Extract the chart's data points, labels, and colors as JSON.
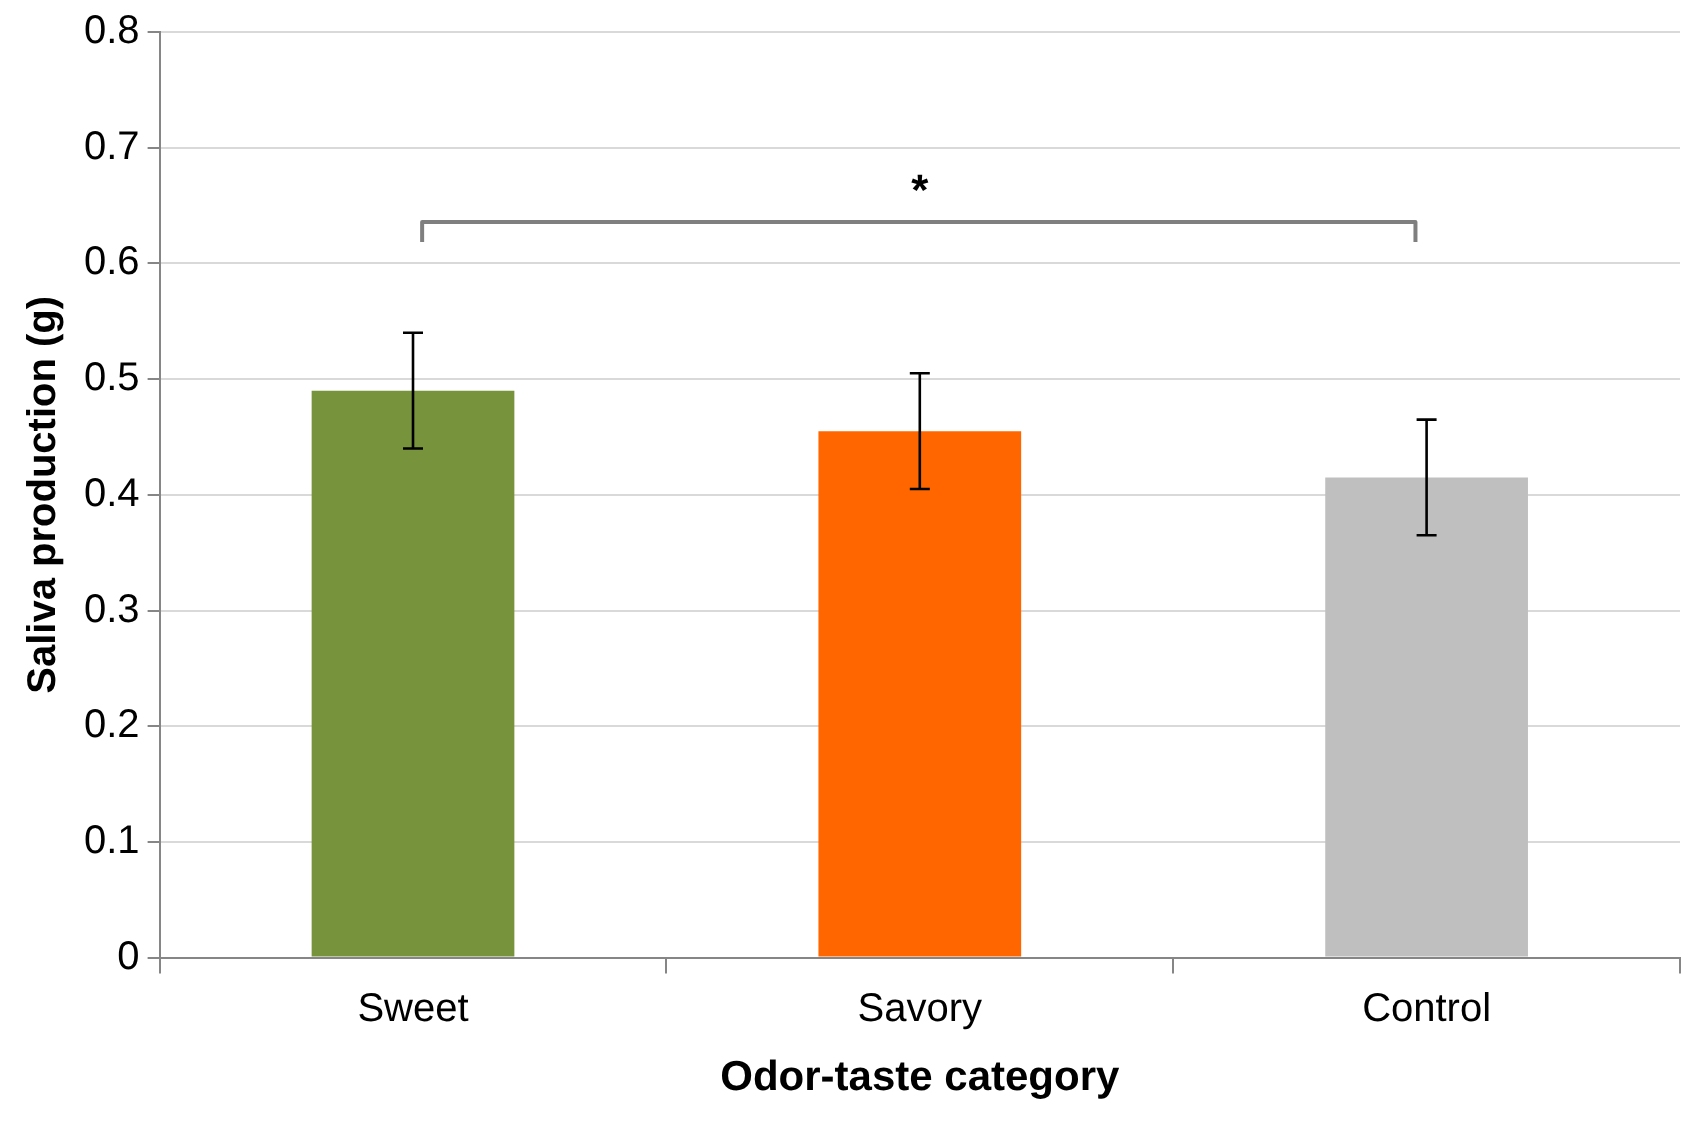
{
  "chart_data": {
    "type": "bar",
    "xlabel": "Odor-taste category",
    "ylabel": "Saliva production (g)",
    "categories": [
      "Sweet",
      "Savory",
      "Control"
    ],
    "values": [
      0.49,
      0.455,
      0.415
    ],
    "colors": [
      "#77933c",
      "#ff6600",
      "#bfbfbf"
    ],
    "errors": [
      0.05,
      0.05,
      0.05
    ],
    "ylim": [
      0,
      0.8
    ],
    "yticks": [
      {
        "value": 0,
        "label": "0"
      },
      0.1,
      0.2,
      0.3,
      0.4,
      0.5,
      0.6,
      0.7,
      0.8
    ],
    "grid": "y",
    "legend": false,
    "annotations": [
      "*"
    ]
  }
}
